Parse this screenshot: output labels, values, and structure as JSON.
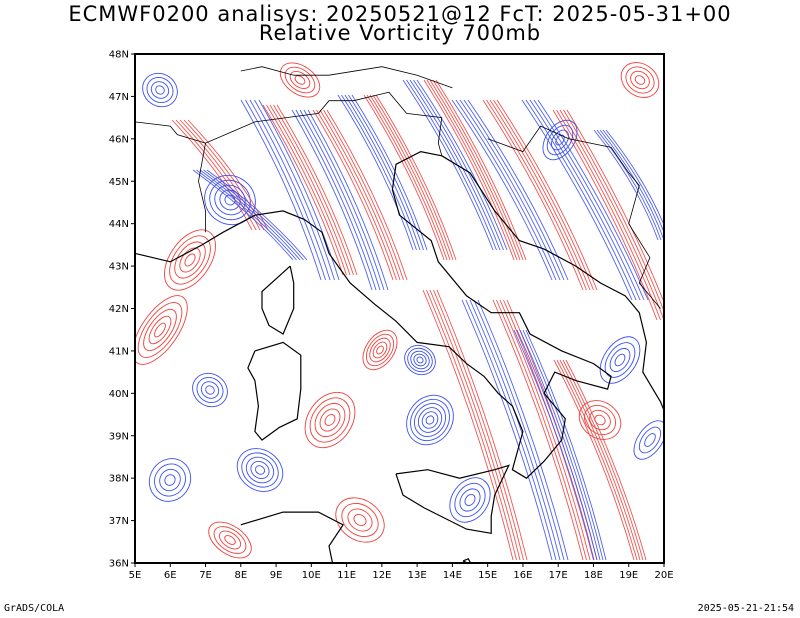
{
  "title_line1": "ECMWF0200 analisys: 20250521@12 FcT: 2025-05-31+00",
  "title_line2": "Relative Vorticity 700mb",
  "footer_left": "GrADS/COLA",
  "footer_right": "2025-05-21-21:54",
  "lat_labels": [
    "48N",
    "47N",
    "46N",
    "45N",
    "44N",
    "43N",
    "42N",
    "41N",
    "40N",
    "39N",
    "38N",
    "37N",
    "36N"
  ],
  "lon_labels": [
    "5E",
    "6E",
    "7E",
    "8E",
    "9E",
    "10E",
    "11E",
    "12E",
    "13E",
    "14E",
    "15E",
    "16E",
    "17E",
    "18E",
    "19E",
    "20E"
  ],
  "colors": {
    "positive": "#f0413c",
    "negative": "#3c50f0",
    "coast": "#000000",
    "frame": "#000000"
  }
}
